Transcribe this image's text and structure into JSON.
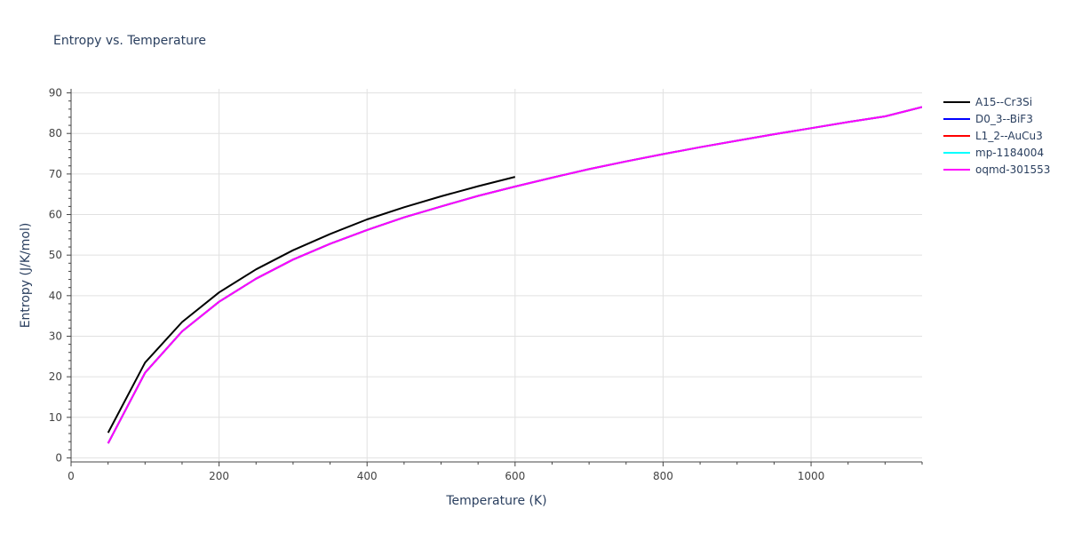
{
  "chart_data": {
    "type": "line",
    "title": "Entropy vs. Temperature",
    "xlabel": "Temperature (K)",
    "ylabel": "Entropy (J/K/mol)",
    "xlim": [
      0,
      1150
    ],
    "ylim": [
      -1,
      91
    ],
    "xticks": [
      0,
      200,
      400,
      600,
      800,
      1000
    ],
    "yticks": [
      0,
      10,
      20,
      30,
      40,
      50,
      60,
      70,
      80,
      90
    ],
    "grid": true,
    "legend_position": "top-right",
    "series": [
      {
        "name": "A15--Cr3Si",
        "color": "#000000",
        "x": [
          50,
          100,
          150,
          200,
          250,
          300,
          350,
          400,
          450,
          500,
          550,
          600
        ],
        "y": [
          6.2,
          23.5,
          33.5,
          40.8,
          46.5,
          51.2,
          55.2,
          58.8,
          61.8,
          64.5,
          67.0,
          69.3
        ]
      },
      {
        "name": "D0_3--BiF3",
        "color": "#0000ff",
        "x": [
          50,
          100,
          150,
          200,
          250,
          300,
          350,
          400,
          450,
          500,
          550,
          600,
          650,
          700,
          750,
          800,
          850,
          900,
          950,
          1000,
          1050,
          1100,
          1150
        ],
        "y": [
          3.6,
          21.0,
          31.2,
          38.5,
          44.2,
          48.9,
          52.8,
          56.2,
          59.3,
          62.0,
          64.6,
          66.9,
          69.1,
          71.2,
          73.1,
          74.9,
          76.6,
          78.2,
          79.8,
          81.3,
          82.8,
          84.2,
          86.5
        ]
      },
      {
        "name": "L1_2--AuCu3",
        "color": "#ff0000",
        "x": [
          50,
          100,
          150,
          200,
          250,
          300,
          350,
          400,
          450,
          500,
          550,
          600,
          650,
          700,
          750,
          800,
          850,
          900,
          950,
          1000,
          1050,
          1100,
          1150
        ],
        "y": [
          3.6,
          21.0,
          31.2,
          38.5,
          44.2,
          48.9,
          52.8,
          56.2,
          59.3,
          62.0,
          64.6,
          66.9,
          69.1,
          71.2,
          73.1,
          74.9,
          76.6,
          78.2,
          79.8,
          81.3,
          82.8,
          84.2,
          86.5
        ]
      },
      {
        "name": "mp-1184004",
        "color": "#00ffff",
        "x": [
          50,
          100,
          150,
          200,
          250,
          300,
          350,
          400,
          450,
          500,
          550,
          600,
          650,
          700,
          750,
          800,
          850,
          900,
          950,
          1000,
          1050,
          1100,
          1150
        ],
        "y": [
          3.6,
          21.0,
          31.2,
          38.5,
          44.2,
          48.9,
          52.8,
          56.2,
          59.3,
          62.0,
          64.6,
          66.9,
          69.1,
          71.2,
          73.1,
          74.9,
          76.6,
          78.2,
          79.8,
          81.3,
          82.8,
          84.2,
          86.5
        ]
      },
      {
        "name": "oqmd-301553",
        "color": "#ff00ff",
        "x": [
          50,
          100,
          150,
          200,
          250,
          300,
          350,
          400,
          450,
          500,
          550,
          600,
          650,
          700,
          750,
          800,
          850,
          900,
          950,
          1000,
          1050,
          1100,
          1150
        ],
        "y": [
          3.6,
          21.0,
          31.2,
          38.5,
          44.2,
          48.9,
          52.8,
          56.2,
          59.3,
          62.0,
          64.6,
          66.9,
          69.1,
          71.2,
          73.1,
          74.9,
          76.6,
          78.2,
          79.8,
          81.3,
          82.8,
          84.2,
          86.5
        ]
      }
    ]
  }
}
